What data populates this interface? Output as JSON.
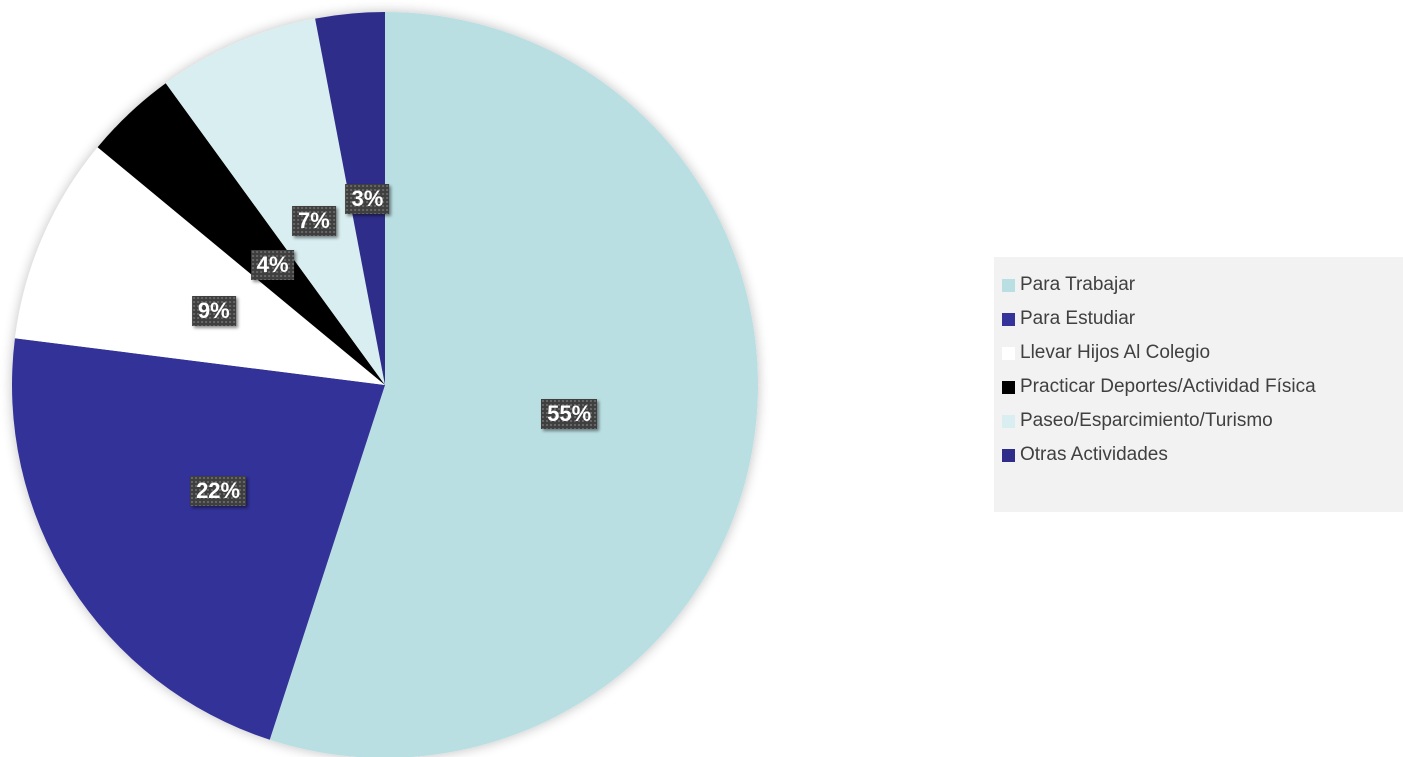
{
  "chart_data": {
    "type": "pie",
    "title": "",
    "start_angle_deg": 0,
    "direction": "clockwise",
    "legend_position": "right",
    "slices": [
      {
        "name": "Para Trabajar",
        "value": 55,
        "label": "55%",
        "color": "#badfe3"
      },
      {
        "name": "Para Estudiar",
        "value": 22,
        "label": "22%",
        "color": "#333399"
      },
      {
        "name": "Llevar Hijos Al Colegio",
        "value": 9,
        "label": "9%",
        "color": "#ffffff"
      },
      {
        "name": "Practicar Deportes/Actividad Física",
        "value": 4,
        "label": "4%",
        "color": "#000000"
      },
      {
        "name": "Paseo/Esparcimiento/Turismo",
        "value": 7,
        "label": "7%",
        "color": "#d9eef0"
      },
      {
        "name": "Otras Actividades",
        "value": 3,
        "label": "3%",
        "color": "#2e2e8a"
      }
    ]
  }
}
